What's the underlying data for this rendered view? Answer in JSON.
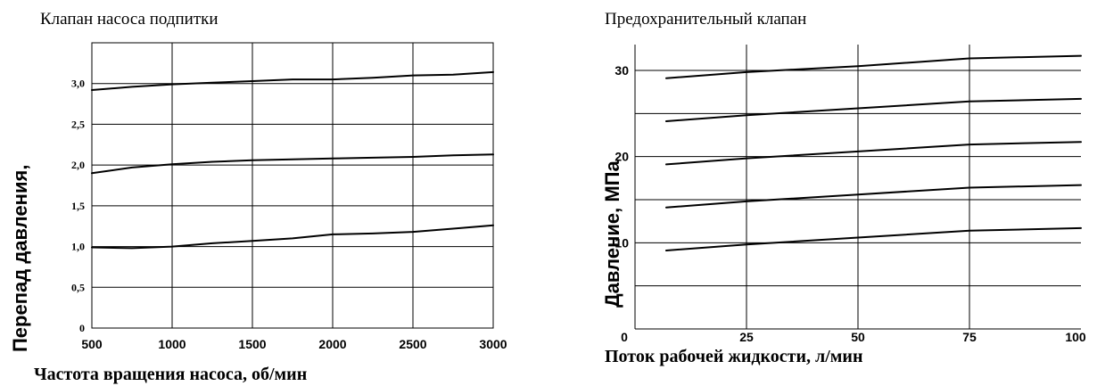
{
  "chart_data": [
    {
      "type": "line",
      "title": "Клапан насоса подпитки",
      "xlabel": "Частота вращения насоса, об/мин",
      "ylabel": "Перепад давления,",
      "xlim": [
        500,
        3000
      ],
      "ylim": [
        0,
        3.5
      ],
      "grid": true,
      "x_ticks": [
        "500",
        "1000",
        "1500",
        "2000",
        "2500",
        "3000"
      ],
      "y_ticks": [
        "0",
        "0,5",
        "1,0",
        "1,5",
        "2,0",
        "2,5",
        "3,0"
      ],
      "series": [
        {
          "x": [
            500,
            750,
            1000,
            1250,
            1500,
            1750,
            2000,
            2250,
            2500,
            2750,
            3000
          ],
          "values": [
            0.99,
            0.98,
            1.0,
            1.04,
            1.07,
            1.1,
            1.15,
            1.16,
            1.18,
            1.22,
            1.26
          ]
        },
        {
          "x": [
            500,
            750,
            1000,
            1250,
            1500,
            1750,
            2000,
            2250,
            2500,
            2750,
            3000
          ],
          "values": [
            1.9,
            1.97,
            2.01,
            2.04,
            2.06,
            2.07,
            2.08,
            2.09,
            2.1,
            2.12,
            2.13
          ]
        },
        {
          "x": [
            500,
            750,
            1000,
            1250,
            1500,
            1750,
            2000,
            2250,
            2500,
            2750,
            3000
          ],
          "values": [
            2.92,
            2.96,
            2.99,
            3.01,
            3.03,
            3.05,
            3.05,
            3.07,
            3.1,
            3.11,
            3.14
          ]
        }
      ]
    },
    {
      "type": "line",
      "title": "Предохранительный клапан",
      "xlabel": "Поток рабочей жидкости, л/мин",
      "ylabel": "Давление, МПа",
      "xlim": [
        0,
        100
      ],
      "ylim": [
        0,
        33
      ],
      "grid": true,
      "x_ticks": [
        "0",
        "25",
        "50",
        "75",
        "100"
      ],
      "y_ticks": [
        "10",
        "20",
        "30"
      ],
      "series": [
        {
          "x": [
            7,
            25,
            50,
            75,
            100
          ],
          "values": [
            9.1,
            9.8,
            10.6,
            11.4,
            11.7
          ]
        },
        {
          "x": [
            7,
            25,
            50,
            75,
            100
          ],
          "values": [
            14.1,
            14.8,
            15.6,
            16.4,
            16.7
          ]
        },
        {
          "x": [
            7,
            25,
            50,
            75,
            100
          ],
          "values": [
            19.1,
            19.8,
            20.6,
            21.4,
            21.7
          ]
        },
        {
          "x": [
            7,
            25,
            50,
            75,
            100
          ],
          "values": [
            24.1,
            24.8,
            25.6,
            26.4,
            26.7
          ]
        },
        {
          "x": [
            7,
            25,
            50,
            75,
            100
          ],
          "values": [
            29.1,
            29.8,
            30.5,
            31.4,
            31.7
          ]
        }
      ]
    }
  ]
}
